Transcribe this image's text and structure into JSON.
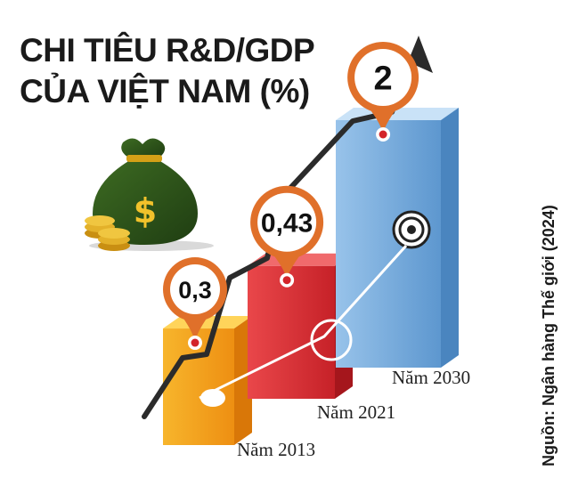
{
  "chart_data": {
    "type": "bar",
    "title_lines": [
      "CHI TIÊU R&D/GDP",
      "CỦA VIỆT NAM (%)"
    ],
    "categories": [
      "Năm 2013",
      "Năm 2021",
      "Năm 2030"
    ],
    "values": [
      0.3,
      0.43,
      2
    ],
    "value_labels": [
      "0,3",
      "0,43",
      "2"
    ],
    "source": "Nguồn: Ngân hàng Thế giới (2024)",
    "colors": {
      "bar_2013": "#f5a21b",
      "bar_2021": "#e0383c",
      "bar_2030": "#7fb2e0",
      "pin": "#e0702a",
      "arrow": "#2b2b2b"
    },
    "icons": [
      "money-bag-icon",
      "coins-icon",
      "target-icon",
      "map-pin-icon",
      "trend-arrow-icon"
    ]
  }
}
